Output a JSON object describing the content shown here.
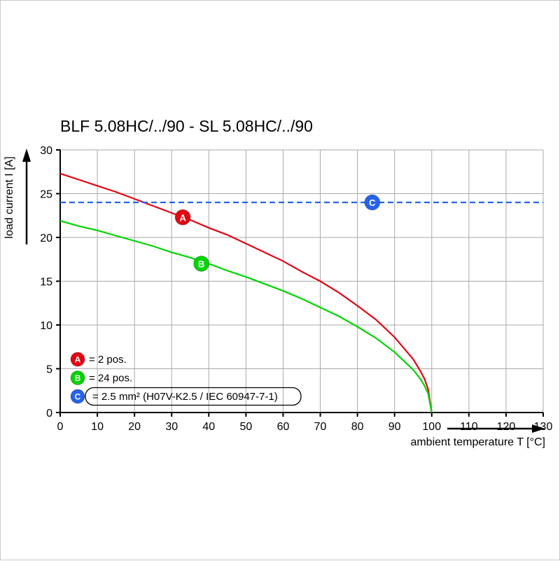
{
  "title": "BLF 5.08HC/../90 - SL 5.08HC/../90",
  "chart_data": {
    "type": "line",
    "title": "BLF 5.08HC/../90 - SL 5.08HC/../90",
    "xlabel": "ambient temperature T [°C]",
    "ylabel": "load current I [A]",
    "xlim": [
      0,
      130
    ],
    "ylim": [
      0,
      30
    ],
    "xticks": [
      0,
      10,
      20,
      30,
      40,
      50,
      60,
      70,
      80,
      90,
      100,
      110,
      120,
      130
    ],
    "yticks": [
      0,
      5,
      10,
      15,
      20,
      25,
      30
    ],
    "grid": true,
    "legend_position": "bottom-left",
    "series": [
      {
        "name": "A",
        "legend": "= 2 pos.",
        "color": "#e30613",
        "dash": null,
        "marker_at": [
          33,
          22.3
        ],
        "points": [
          [
            0,
            27.3
          ],
          [
            5,
            26.6
          ],
          [
            10,
            25.9
          ],
          [
            15,
            25.2
          ],
          [
            20,
            24.4
          ],
          [
            25,
            23.6
          ],
          [
            30,
            22.8
          ],
          [
            35,
            22.0
          ],
          [
            40,
            21.1
          ],
          [
            45,
            20.3
          ],
          [
            50,
            19.3
          ],
          [
            55,
            18.3
          ],
          [
            60,
            17.3
          ],
          [
            65,
            16.1
          ],
          [
            70,
            15.0
          ],
          [
            75,
            13.7
          ],
          [
            80,
            12.2
          ],
          [
            85,
            10.6
          ],
          [
            90,
            8.6
          ],
          [
            95,
            6.1
          ],
          [
            97,
            4.7
          ],
          [
            98,
            3.9
          ],
          [
            99,
            2.7
          ],
          [
            100,
            0
          ]
        ]
      },
      {
        "name": "B",
        "legend": "= 24 pos.",
        "color": "#00d400",
        "dash": null,
        "marker_at": [
          38,
          17
        ],
        "points": [
          [
            0,
            21.9
          ],
          [
            5,
            21.3
          ],
          [
            10,
            20.8
          ],
          [
            15,
            20.2
          ],
          [
            20,
            19.6
          ],
          [
            25,
            19.0
          ],
          [
            30,
            18.3
          ],
          [
            35,
            17.7
          ],
          [
            40,
            17.0
          ],
          [
            45,
            16.2
          ],
          [
            50,
            15.5
          ],
          [
            55,
            14.7
          ],
          [
            60,
            13.9
          ],
          [
            65,
            13.0
          ],
          [
            70,
            12.0
          ],
          [
            75,
            11.0
          ],
          [
            80,
            9.8
          ],
          [
            85,
            8.5
          ],
          [
            90,
            6.9
          ],
          [
            95,
            4.9
          ],
          [
            97,
            3.8
          ],
          [
            98,
            3.1
          ],
          [
            99,
            2.2
          ],
          [
            100,
            0
          ]
        ]
      },
      {
        "name": "C",
        "legend": "= 2.5 mm² (H07V-K2.5 / IEC 60947-7-1)",
        "color": "#2563eb",
        "dash": "8,5",
        "boxed_legend": true,
        "marker_at": [
          84,
          24
        ],
        "points": [
          [
            0,
            24
          ],
          [
            130,
            24
          ]
        ]
      }
    ]
  }
}
